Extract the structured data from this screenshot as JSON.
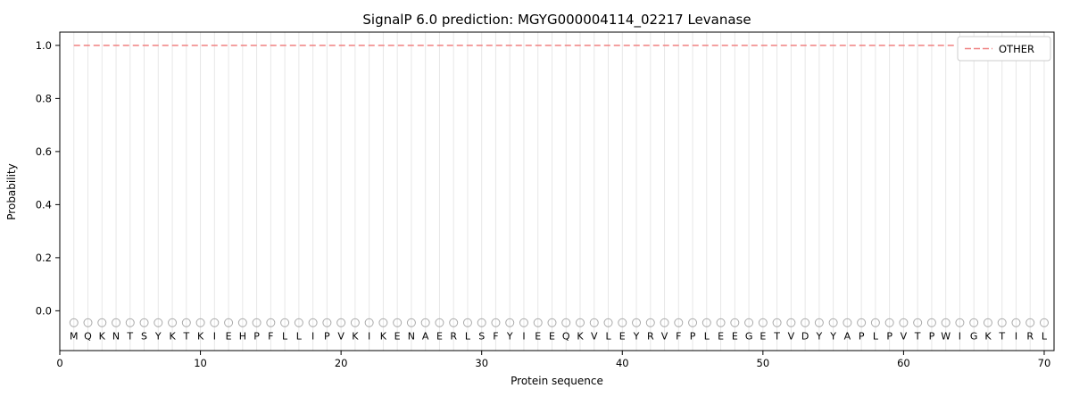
{
  "chart_data": {
    "type": "line",
    "title": "SignalP 6.0 prediction: MGYG000004114_02217 Levanase",
    "xlabel": "Protein sequence",
    "ylabel": "Probability",
    "xlim": [
      0,
      70.7
    ],
    "ylim": [
      -0.15,
      1.05
    ],
    "xticks": [
      0,
      10,
      20,
      30,
      40,
      50,
      60,
      70
    ],
    "yticks": [
      0.0,
      0.2,
      0.4,
      0.6,
      0.8,
      1.0
    ],
    "grid": "vertical-gridline-per-residue",
    "legend_position": "upper right",
    "sequence": [
      "M",
      "Q",
      "K",
      "N",
      "T",
      "S",
      "Y",
      "K",
      "T",
      "K",
      "I",
      "E",
      "H",
      "P",
      "F",
      "L",
      "L",
      "I",
      "P",
      "V",
      "K",
      "I",
      "K",
      "E",
      "N",
      "A",
      "E",
      "R",
      "L",
      "S",
      "F",
      "Y",
      "I",
      "E",
      "E",
      "Q",
      "K",
      "V",
      "L",
      "E",
      "Y",
      "R",
      "V",
      "F",
      "P",
      "L",
      "E",
      "E",
      "G",
      "E",
      "T",
      "V",
      "D",
      "Y",
      "Y",
      "A",
      "P",
      "L",
      "P",
      "V",
      "T",
      "P",
      "W",
      "I",
      "G",
      "K",
      "T",
      "I",
      "R",
      "L"
    ],
    "series": [
      {
        "name": "OTHER",
        "style": "dashed",
        "color": "#f08080",
        "x_range": [
          1,
          70
        ],
        "value": 1.0
      }
    ],
    "marker_row": {
      "symbol": "open-circle",
      "y": -0.045,
      "color": "#aaaaaa"
    },
    "colors": {
      "gridline": "#e7e7e7",
      "axis": "#000000",
      "letters": "#000000",
      "legend_border": "#cccccc"
    }
  }
}
